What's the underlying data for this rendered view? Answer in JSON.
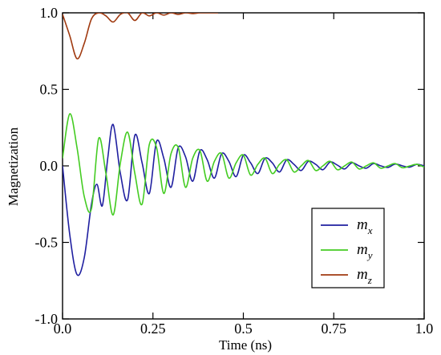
{
  "chart_data": {
    "type": "line",
    "title": "",
    "xlabel": "Time (ns)",
    "ylabel": "Magnetization",
    "xlim": [
      0.0,
      1.0
    ],
    "ylim": [
      -1.0,
      1.0
    ],
    "x_ticks": [
      "0.0",
      "0.25",
      "0.5",
      "0.75",
      "1.0"
    ],
    "y_ticks": [
      "1.0",
      "0.5",
      "0.0",
      "-0.5",
      "-1.0"
    ],
    "legend_position": "bottom-right",
    "grid": false,
    "series": [
      {
        "name": "mx",
        "label_base": "m",
        "label_sub": "x",
        "color": "#1f1fa0",
        "x": [
          0.0,
          0.02,
          0.04,
          0.06,
          0.08,
          0.095,
          0.11,
          0.125,
          0.14,
          0.16,
          0.18,
          0.2,
          0.22,
          0.24,
          0.26,
          0.28,
          0.3,
          0.32,
          0.34,
          0.36,
          0.38,
          0.4,
          0.42,
          0.44,
          0.46,
          0.48,
          0.5,
          0.52,
          0.54,
          0.56,
          0.58,
          0.6,
          0.62,
          0.64,
          0.66,
          0.68,
          0.7,
          0.72,
          0.74,
          0.76,
          0.78,
          0.8,
          0.82,
          0.84,
          0.86,
          0.88,
          0.9,
          0.92,
          0.94,
          0.96,
          0.98,
          1.0
        ],
        "y": [
          0.0,
          -0.45,
          -0.71,
          -0.6,
          -0.25,
          -0.12,
          -0.26,
          0.05,
          0.27,
          -0.05,
          -0.22,
          0.2,
          0.02,
          -0.18,
          0.16,
          0.05,
          -0.14,
          0.12,
          0.06,
          -0.1,
          0.1,
          0.04,
          -0.08,
          0.08,
          0.03,
          -0.07,
          0.07,
          0.02,
          -0.05,
          0.05,
          0.02,
          -0.04,
          0.04,
          0.01,
          -0.03,
          0.03,
          0.01,
          -0.025,
          0.025,
          0.005,
          -0.02,
          0.02,
          0.0,
          -0.015,
          0.015,
          0.0,
          -0.01,
          0.012,
          0.0,
          -0.008,
          0.01,
          0.0
        ]
      },
      {
        "name": "my",
        "label_base": "m",
        "label_sub": "y",
        "color": "#44cc22",
        "x": [
          0.0,
          0.02,
          0.04,
          0.06,
          0.08,
          0.1,
          0.12,
          0.14,
          0.16,
          0.18,
          0.2,
          0.22,
          0.24,
          0.26,
          0.28,
          0.3,
          0.32,
          0.34,
          0.36,
          0.38,
          0.4,
          0.42,
          0.44,
          0.46,
          0.48,
          0.5,
          0.52,
          0.54,
          0.56,
          0.58,
          0.6,
          0.62,
          0.64,
          0.66,
          0.68,
          0.7,
          0.72,
          0.74,
          0.76,
          0.78,
          0.8,
          0.82,
          0.84,
          0.86,
          0.88,
          0.9,
          0.92,
          0.94,
          0.96,
          0.98,
          1.0
        ],
        "y": [
          0.05,
          0.34,
          0.12,
          -0.2,
          -0.28,
          0.18,
          -0.05,
          -0.32,
          0.02,
          0.22,
          -0.05,
          -0.25,
          0.14,
          0.12,
          -0.18,
          0.08,
          0.12,
          -0.14,
          0.05,
          0.1,
          -0.1,
          0.03,
          0.08,
          -0.08,
          0.02,
          0.07,
          -0.06,
          0.01,
          0.05,
          -0.05,
          0.01,
          0.04,
          -0.04,
          0.0,
          0.035,
          -0.03,
          0.0,
          0.03,
          -0.025,
          0.0,
          0.025,
          -0.02,
          0.0,
          0.02,
          -0.015,
          0.0,
          0.015,
          -0.012,
          0.0,
          0.01,
          -0.008
        ]
      },
      {
        "name": "mz",
        "label_base": "m",
        "label_sub": "z",
        "color": "#a03a10",
        "x": [
          0.0,
          0.02,
          0.04,
          0.06,
          0.08,
          0.1,
          0.12,
          0.14,
          0.16,
          0.18,
          0.2,
          0.22,
          0.24,
          0.26,
          0.28,
          0.3,
          0.32,
          0.34,
          0.36,
          0.38,
          0.4,
          0.43
        ],
        "y": [
          0.99,
          0.85,
          0.7,
          0.8,
          0.96,
          1.0,
          0.98,
          0.94,
          0.99,
          1.0,
          0.95,
          1.0,
          0.98,
          1.0,
          0.985,
          1.0,
          0.99,
          1.0,
          0.995,
          1.0,
          1.0,
          1.0
        ]
      }
    ]
  }
}
